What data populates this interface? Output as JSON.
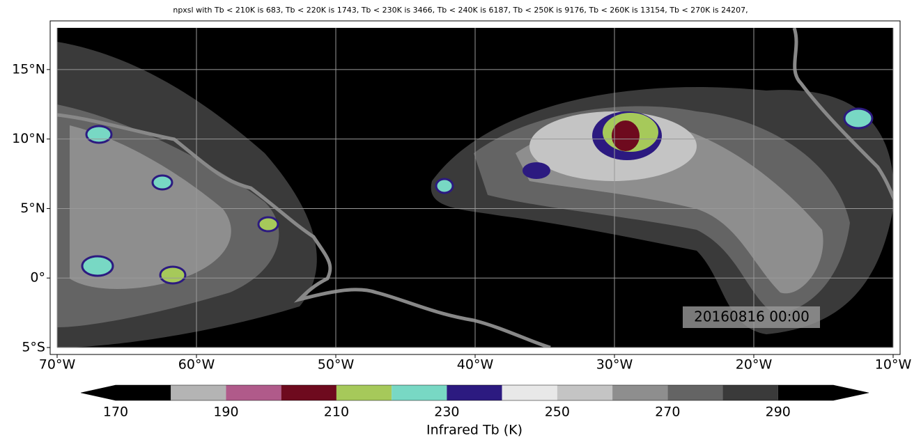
{
  "title": "npxsl with Tb < 210K is 683,  Tb < 220K is 1743,  Tb < 230K is 3466,  Tb < 240K is 6187,  Tb < 250K is 9176,  Tb < 260K is 13154,  Tb < 270K is 24207,",
  "xlim": [
    -70.5,
    -9.5
  ],
  "ylim": [
    -5.5,
    18.5
  ],
  "xticks": [
    {
      "value": -70,
      "label": "70°W"
    },
    {
      "value": -60,
      "label": "60°W"
    },
    {
      "value": -50,
      "label": "50°W"
    },
    {
      "value": -40,
      "label": "40°W"
    },
    {
      "value": -30,
      "label": "30°W"
    },
    {
      "value": -20,
      "label": "20°W"
    },
    {
      "value": -10,
      "label": "10°W"
    }
  ],
  "yticks": [
    {
      "value": -5,
      "label": "5°S"
    },
    {
      "value": 0,
      "label": "0°"
    },
    {
      "value": 5,
      "label": "5°N"
    },
    {
      "value": 10,
      "label": "10°N"
    },
    {
      "value": 15,
      "label": "15°N"
    }
  ],
  "grid": true,
  "timestamp": "20160816 00:00",
  "colorbar": {
    "label": "Infrared Tb (K)",
    "bounds": [
      170,
      180,
      190,
      200,
      210,
      220,
      230,
      240,
      250,
      260,
      270,
      280,
      290,
      300
    ],
    "colors": [
      "#000000",
      "#b4b4b4",
      "#b05a8a",
      "#6e0a1e",
      "#a6c95a",
      "#78d8c4",
      "#2c1a80",
      "#e8e8e8",
      "#c4c4c4",
      "#8e8e8e",
      "#646464",
      "#3a3a3a",
      "#000000"
    ],
    "ticks": [
      170,
      190,
      210,
      230,
      250,
      270,
      290
    ]
  }
}
